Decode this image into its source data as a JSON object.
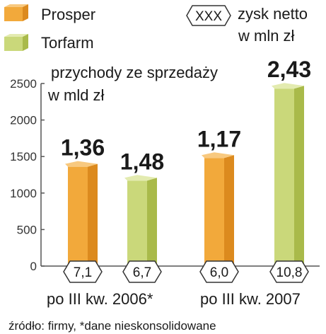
{
  "legend": {
    "series": [
      {
        "name": "Prosper",
        "icon": "orange-box-icon"
      },
      {
        "name": "Torfarm",
        "icon": "green-box-icon"
      }
    ],
    "badge_key": {
      "symbol": "XXX",
      "description": "zysk netto w mln zł"
    }
  },
  "colors": {
    "prosper": {
      "front": "#F2A93B",
      "side": "#DC8A1E",
      "top": "#F8C97F"
    },
    "torfarm": {
      "front": "#CAD87A",
      "side": "#A9BA4A",
      "top": "#E3EBB0"
    },
    "axis": "#555555"
  },
  "note": "źródło: firmy, *dane nieskonsolidowane",
  "chart_data": {
    "type": "bar",
    "title": "",
    "ylabel": "przychody ze sprzedaży w mld zł",
    "ylim": [
      0,
      2500
    ],
    "yticks": [
      0,
      500,
      1000,
      1500,
      2000,
      2500
    ],
    "grid": false,
    "categories": [
      "po III kw. 2006*",
      "po III kw. 2007"
    ],
    "series": [
      {
        "name": "Prosper",
        "values": [
          1360,
          1480
        ],
        "profit_labels": [
          "7,1",
          "6,0"
        ]
      },
      {
        "name": "Torfarm",
        "values": [
          1170,
          2430
        ],
        "profit_labels": [
          "6,7",
          "10,8"
        ]
      }
    ],
    "value_labels": [
      [
        "1,36",
        "1,48"
      ],
      [
        "1,17",
        "2,43"
      ]
    ]
  }
}
